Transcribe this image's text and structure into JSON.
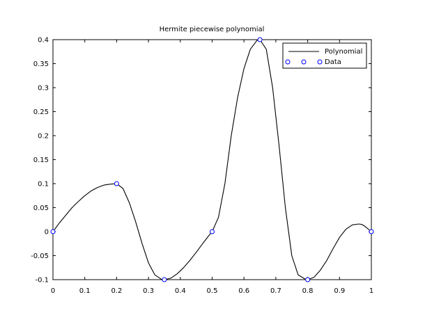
{
  "chart_data": {
    "type": "line",
    "title": "Hermite piecewise polynomial",
    "xlabel": "",
    "ylabel": "",
    "xlim": [
      0,
      1
    ],
    "ylim": [
      -0.1,
      0.4
    ],
    "x_ticks": [
      "0",
      "0.1",
      "0.2",
      "0.3",
      "0.4",
      "0.5",
      "0.6",
      "0.7",
      "0.8",
      "0.9",
      "1"
    ],
    "y_ticks": [
      "-0.1",
      "-0.05",
      "0",
      "0.05",
      "0.1",
      "0.15",
      "0.2",
      "0.25",
      "0.3",
      "0.35",
      "0.4"
    ],
    "grid": false,
    "legend_position": "top-right",
    "series": [
      {
        "name": "Polynomial",
        "kind": "line",
        "color": "#000000",
        "x": [
          0,
          0.02,
          0.04,
          0.06,
          0.08,
          0.1,
          0.12,
          0.14,
          0.16,
          0.18,
          0.2,
          0.22,
          0.24,
          0.26,
          0.28,
          0.3,
          0.32,
          0.34,
          0.35,
          0.37,
          0.39,
          0.41,
          0.43,
          0.45,
          0.47,
          0.49,
          0.5,
          0.52,
          0.54,
          0.56,
          0.58,
          0.6,
          0.62,
          0.64,
          0.65,
          0.67,
          0.69,
          0.71,
          0.73,
          0.75,
          0.77,
          0.79,
          0.8,
          0.82,
          0.84,
          0.86,
          0.88,
          0.9,
          0.92,
          0.94,
          0.96,
          0.97,
          0.98,
          1.0
        ],
        "y": [
          0,
          0.018,
          0.034,
          0.05,
          0.063,
          0.075,
          0.085,
          0.092,
          0.097,
          0.099,
          0.1,
          0.09,
          0.06,
          0.02,
          -0.025,
          -0.065,
          -0.09,
          -0.099,
          -0.1,
          -0.097,
          -0.088,
          -0.075,
          -0.06,
          -0.043,
          -0.025,
          -0.008,
          0,
          0.03,
          0.1,
          0.2,
          0.28,
          0.34,
          0.38,
          0.398,
          0.4,
          0.38,
          0.3,
          0.18,
          0.05,
          -0.05,
          -0.09,
          -0.098,
          -0.1,
          -0.095,
          -0.08,
          -0.06,
          -0.035,
          -0.012,
          0.005,
          0.014,
          0.016,
          0.015,
          0.011,
          0
        ]
      },
      {
        "name": "Data",
        "kind": "scatter",
        "color": "#0000ff",
        "x": [
          0,
          0.2,
          0.35,
          0.5,
          0.65,
          0.8,
          1.0
        ],
        "y": [
          0,
          0.1,
          -0.1,
          0,
          0.4,
          -0.1,
          0
        ]
      }
    ]
  }
}
